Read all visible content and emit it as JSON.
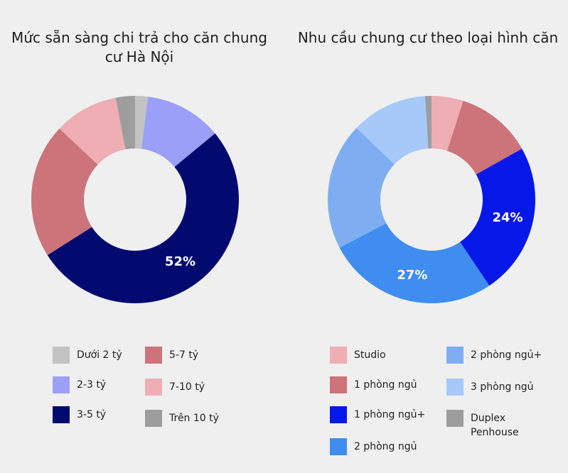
{
  "chart_data": [
    {
      "type": "donut",
      "title": "Mức sẵn sàng chi trả cho căn chung cư Hà Nội",
      "categories": [
        "Dưới 2 tỷ",
        "2-3 tỷ",
        "3-5 tỷ",
        "5-7 tỷ",
        "7-10 tỷ",
        "Trên 10 tỷ"
      ],
      "values": [
        2,
        12,
        52,
        21,
        10,
        3
      ],
      "colors": [
        "#c3c3c3",
        "#9c9ff7",
        "#030a6f",
        "#cd737a",
        "#eeaeb3",
        "#9d9d9d"
      ],
      "data_labels": [
        "",
        "",
        "52%",
        "",
        "",
        ""
      ],
      "legend_position": "bottom"
    },
    {
      "type": "donut",
      "title": "Nhu cầu chung cư theo loại hình căn",
      "categories": [
        "Studio",
        "1 phòng ngủ",
        "1 phòng ngủ+",
        "2 phòng ngủ",
        "2 phòng ngủ+",
        "3 phòng ngủ",
        "Duplex Penhouse"
      ],
      "values": [
        5,
        12,
        24,
        27,
        20,
        12,
        1
      ],
      "colors": [
        "#eeaeb3",
        "#cd737a",
        "#0618e8",
        "#3f8df0",
        "#7eaef1",
        "#a6c9f9",
        "#9d9d9d"
      ],
      "data_labels": [
        "",
        "",
        "24%",
        "27%",
        "",
        "",
        ""
      ],
      "legend_position": "bottom"
    }
  ]
}
